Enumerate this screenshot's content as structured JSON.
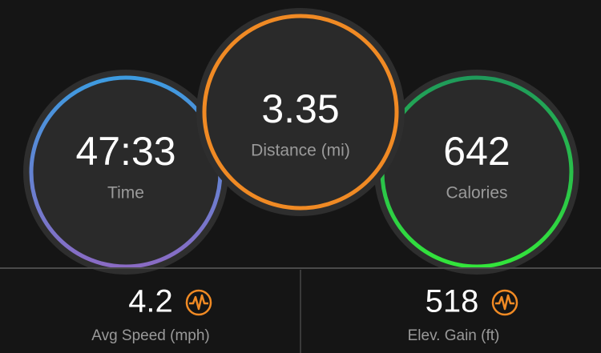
{
  "circles": [
    {
      "value": "47:33",
      "label": "Time"
    },
    {
      "value": "3.35",
      "label": "Distance (mi)"
    },
    {
      "value": "642",
      "label": "Calories"
    }
  ],
  "stats": [
    {
      "value": "4.2",
      "label": "Avg Speed (mph)"
    },
    {
      "value": "518",
      "label": "Elev. Gain (ft)"
    }
  ]
}
